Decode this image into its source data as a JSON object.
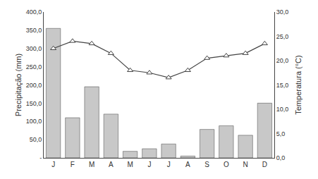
{
  "chart_data": {
    "type": "bar",
    "categories": [
      "J",
      "F",
      "M",
      "A",
      "M",
      "J",
      "J",
      "A",
      "S",
      "O",
      "N",
      "D"
    ],
    "series": [
      {
        "type": "bar",
        "color": "#c8c8c8",
        "values": [
          355,
          110,
          195,
          120,
          18,
          25,
          38,
          5,
          78,
          88,
          62,
          150
        ]
      },
      {
        "type": "line",
        "axis": "y2",
        "color": "#444444",
        "marker": "triangle-up",
        "values": [
          22.5,
          24.0,
          23.5,
          21.5,
          18.0,
          17.5,
          16.5,
          18.0,
          20.5,
          21.0,
          21.5,
          23.5
        ]
      }
    ],
    "ylabel": "Precipitação (mm)",
    "y2label": "Temperatura (°C)",
    "ylim": [
      0,
      400
    ],
    "yticks": [
      {
        "value": 0,
        "label": "-"
      },
      {
        "value": 50,
        "label": "50,0"
      },
      {
        "value": 100,
        "label": "100,0"
      },
      {
        "value": 150,
        "label": "150,0"
      },
      {
        "value": 200,
        "label": "200,0"
      },
      {
        "value": 250,
        "label": "250,0"
      },
      {
        "value": 300,
        "label": "300,0"
      },
      {
        "value": 350,
        "label": "350,0"
      },
      {
        "value": 400,
        "label": "400,0"
      }
    ],
    "y2lim": [
      0,
      30
    ],
    "y2ticks": [
      {
        "value": 0,
        "label": "0,0"
      },
      {
        "value": 5,
        "label": "5,0"
      },
      {
        "value": 10,
        "label": "10,0"
      },
      {
        "value": 15,
        "label": "15,0"
      },
      {
        "value": 20,
        "label": "20,0"
      },
      {
        "value": 25,
        "label": "25,0"
      },
      {
        "value": 30,
        "label": "30,0"
      }
    ],
    "grid": false
  }
}
